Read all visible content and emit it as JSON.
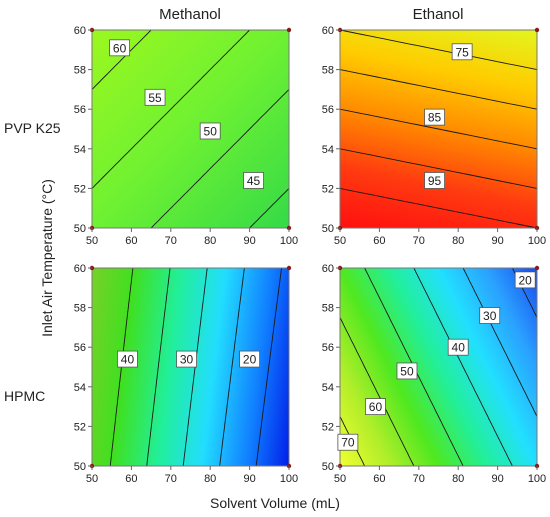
{
  "figure": {
    "column_titles": [
      "Methanol",
      "Ethanol"
    ],
    "row_titles": [
      "PVP K25",
      "HPMC"
    ],
    "xlabel": "Solvent Volume (mL)",
    "ylabel": "Inlet Air Temperature (°C)"
  },
  "chart_data": [
    {
      "type": "heatmap",
      "plot": "contour",
      "polymer": "PVP K25",
      "solvent": "Methanol",
      "xlim": [
        50,
        100
      ],
      "ylim": [
        50,
        60
      ],
      "x_ticks": [
        "50",
        "60",
        "70",
        "80",
        "90",
        "100"
      ],
      "y_ticks": [
        "50",
        "52",
        "54",
        "56",
        "58",
        "60"
      ],
      "z_at_corners": {
        "x50_y50": 53,
        "x100_y50": 43,
        "x50_y60": 63,
        "x100_y60": 53
      },
      "z_range_color": [
        42,
        64
      ],
      "colorscale": [
        "#2fd84a",
        "#6ef132",
        "#a0f81e"
      ],
      "contour_levels": [
        45,
        50,
        55,
        60
      ],
      "contour_labels": [
        {
          "text": "60",
          "x": 57,
          "y": 59.1
        },
        {
          "text": "55",
          "x": 66,
          "y": 56.6
        },
        {
          "text": "50",
          "x": 80,
          "y": 54.9
        },
        {
          "text": "45",
          "x": 91,
          "y": 52.4
        }
      ]
    },
    {
      "type": "heatmap",
      "plot": "contour",
      "polymer": "PVP K25",
      "solvent": "Ethanol",
      "xlim": [
        50,
        100
      ],
      "ylim": [
        50,
        60
      ],
      "x_ticks": [
        "50",
        "60",
        "70",
        "80",
        "90",
        "100"
      ],
      "y_ticks": [
        "50",
        "52",
        "54",
        "56",
        "58",
        "60"
      ],
      "z_at_corners": {
        "x50_y50": 100,
        "x100_y50": 95,
        "x50_y60": 75,
        "x100_y60": 70
      },
      "z_range_color": [
        70,
        100
      ],
      "colorscale": [
        "#e4f51e",
        "#ffcc00",
        "#ff8a00",
        "#ff3a10",
        "#ff1010"
      ],
      "contour_levels": [
        75,
        80,
        85,
        90,
        95
      ],
      "contour_labels": [
        {
          "text": "75",
          "x": 81,
          "y": 58.9
        },
        {
          "text": "85",
          "x": 74,
          "y": 55.6
        },
        {
          "text": "95",
          "x": 74,
          "y": 52.4
        }
      ]
    },
    {
      "type": "heatmap",
      "plot": "contour",
      "polymer": "HPMC",
      "solvent": "Methanol",
      "xlim": [
        50,
        100
      ],
      "ylim": [
        50,
        60
      ],
      "x_ticks": [
        "50",
        "60",
        "70",
        "80",
        "90",
        "100"
      ],
      "y_ticks": [
        "50",
        "52",
        "54",
        "56",
        "58",
        "60"
      ],
      "z_at_corners": {
        "x50_y50": 55,
        "x100_y50": 1,
        "x50_y60": 61,
        "x100_y60": 8
      },
      "z_range_color": [
        0,
        62
      ],
      "colorscale": [
        "#0018e8",
        "#1180ff",
        "#22ddff",
        "#22ef9a",
        "#40e020",
        "#7cd028"
      ],
      "contour_levels": [
        10,
        20,
        30,
        40,
        50
      ],
      "contour_labels": [
        {
          "text": "40",
          "x": 59,
          "y": 55.4
        },
        {
          "text": "30",
          "x": 74,
          "y": 55.4
        },
        {
          "text": "20",
          "x": 90,
          "y": 55.4
        }
      ]
    },
    {
      "type": "heatmap",
      "plot": "contour",
      "polymer": "HPMC",
      "solvent": "Ethanol",
      "xlim": [
        50,
        100
      ],
      "ylim": [
        50,
        60
      ],
      "x_ticks": [
        "50",
        "60",
        "70",
        "80",
        "90",
        "100"
      ],
      "y_ticks": [
        "50",
        "52",
        "54",
        "56",
        "58",
        "60"
      ],
      "z_at_corners": {
        "x50_y50": 75,
        "x100_y50": 35,
        "x50_y60": 55,
        "x100_y60": 15
      },
      "z_range_color": [
        15,
        75
      ],
      "colorscale": [
        "#1a4df0",
        "#2aa0ff",
        "#22e0ff",
        "#22ef9a",
        "#50e820",
        "#b2ee2a",
        "#f0ff30"
      ],
      "contour_levels": [
        20,
        30,
        40,
        50,
        60,
        70
      ],
      "contour_labels": [
        {
          "text": "20",
          "x": 97,
          "y": 59.4
        },
        {
          "text": "30",
          "x": 88,
          "y": 57.6
        },
        {
          "text": "40",
          "x": 80,
          "y": 56.0
        },
        {
          "text": "50",
          "x": 67,
          "y": 54.8
        },
        {
          "text": "60",
          "x": 59,
          "y": 53.0
        },
        {
          "text": "70",
          "x": 52,
          "y": 51.2
        }
      ]
    }
  ]
}
